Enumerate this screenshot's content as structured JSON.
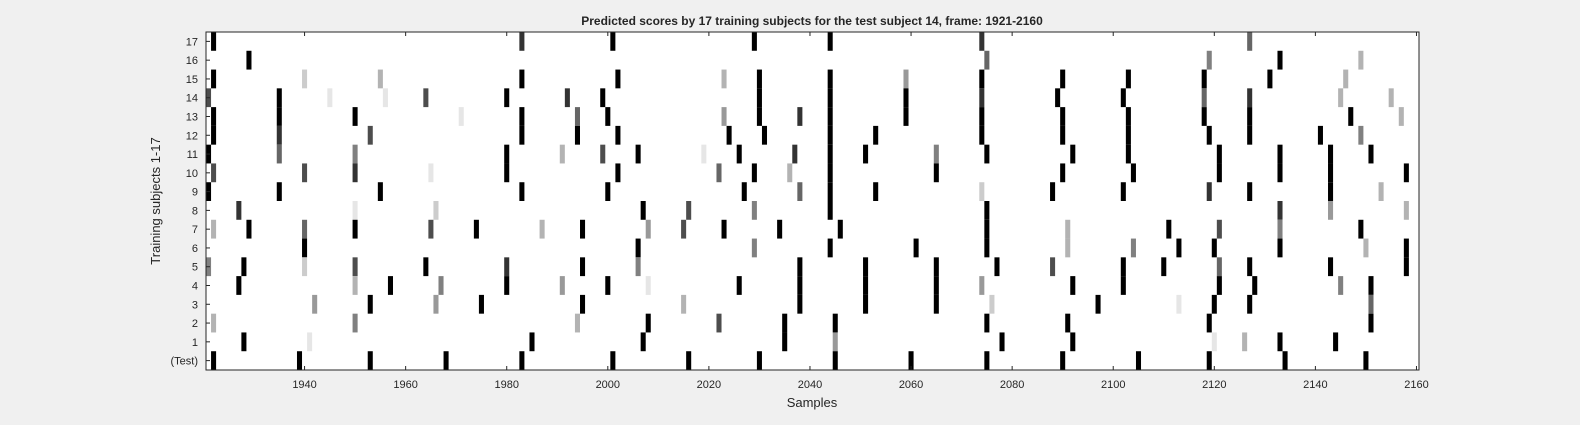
{
  "chart_data": {
    "type": "heatmap",
    "title": "Predicted scores by 17 training subjects for the test subject 14, frame: 1921-2160",
    "xlabel": "Samples",
    "ylabel": "Training subjects 1-17",
    "xlim": [
      1921,
      2160
    ],
    "x_ticks": [
      1940,
      1960,
      1980,
      2000,
      2020,
      2040,
      2060,
      2080,
      2100,
      2120,
      2140,
      2160
    ],
    "y_tick_labels": [
      "17",
      "16",
      "15",
      "14",
      "13",
      "12",
      "11",
      "10",
      "9",
      "8",
      "7",
      "6",
      "5",
      "4",
      "3",
      "2",
      "1",
      "(Test)"
    ],
    "colormap": "gray (1 = black, 0 = white)",
    "rows": [
      {
        "label": "17",
        "cells": [
          [
            1922,
            1
          ],
          [
            1983,
            0.8
          ],
          [
            2001,
            1
          ],
          [
            2029,
            1
          ],
          [
            2044,
            1
          ],
          [
            2074,
            0.8
          ],
          [
            2127,
            0.6
          ]
        ]
      },
      {
        "label": "16",
        "cells": [
          [
            1929,
            1
          ],
          [
            2075,
            0.6
          ],
          [
            2119,
            0.5
          ],
          [
            2133,
            1
          ],
          [
            2149,
            0.3
          ]
        ]
      },
      {
        "label": "15",
        "cells": [
          [
            1922,
            1
          ],
          [
            1940,
            0.2
          ],
          [
            1955,
            0.3
          ],
          [
            1983,
            1
          ],
          [
            2002,
            1
          ],
          [
            2023,
            0.3
          ],
          [
            2030,
            1
          ],
          [
            2044,
            1
          ],
          [
            2059,
            0.4
          ],
          [
            2074,
            1
          ],
          [
            2090,
            1
          ],
          [
            2103,
            1
          ],
          [
            2118,
            1
          ],
          [
            2131,
            1
          ],
          [
            2146,
            0.3
          ]
        ]
      },
      {
        "label": "14",
        "cells": [
          [
            1921,
            0.7
          ],
          [
            1935,
            1
          ],
          [
            1945,
            0.1
          ],
          [
            1956,
            0.1
          ],
          [
            1964,
            0.7
          ],
          [
            1980,
            1
          ],
          [
            1992,
            0.8
          ],
          [
            1999,
            1
          ],
          [
            2030,
            1
          ],
          [
            2044,
            1
          ],
          [
            2059,
            1
          ],
          [
            2074,
            0.8
          ],
          [
            2089,
            1
          ],
          [
            2102,
            1
          ],
          [
            2118,
            0.6
          ],
          [
            2127,
            0.8
          ],
          [
            2145,
            0.3
          ],
          [
            2155,
            0.3
          ]
        ]
      },
      {
        "label": "13",
        "cells": [
          [
            1922,
            1
          ],
          [
            1935,
            1
          ],
          [
            1950,
            1
          ],
          [
            1971,
            0.1
          ],
          [
            1983,
            1
          ],
          [
            1994,
            0.6
          ],
          [
            2000,
            1
          ],
          [
            2023,
            0.4
          ],
          [
            2030,
            1
          ],
          [
            2038,
            0.8
          ],
          [
            2044,
            1
          ],
          [
            2059,
            1
          ],
          [
            2074,
            1
          ],
          [
            2090,
            1
          ],
          [
            2103,
            1
          ],
          [
            2118,
            1
          ],
          [
            2127,
            1
          ],
          [
            2147,
            1
          ],
          [
            2157,
            0.3
          ]
        ]
      },
      {
        "label": "12",
        "cells": [
          [
            1922,
            1
          ],
          [
            1935,
            0.8
          ],
          [
            1953,
            0.7
          ],
          [
            1983,
            1
          ],
          [
            1994,
            1
          ],
          [
            2002,
            1
          ],
          [
            2024,
            1
          ],
          [
            2031,
            1
          ],
          [
            2044,
            1
          ],
          [
            2053,
            1
          ],
          [
            2074,
            1
          ],
          [
            2090,
            1
          ],
          [
            2103,
            1
          ],
          [
            2119,
            1
          ],
          [
            2127,
            1
          ],
          [
            2141,
            1
          ],
          [
            2149,
            0.5
          ]
        ]
      },
      {
        "label": "11",
        "cells": [
          [
            1921,
            1
          ],
          [
            1935,
            0.6
          ],
          [
            1950,
            0.5
          ],
          [
            1980,
            1
          ],
          [
            1991,
            0.3
          ],
          [
            1999,
            0.7
          ],
          [
            2006,
            1
          ],
          [
            2019,
            0.1
          ],
          [
            2026,
            1
          ],
          [
            2037,
            0.8
          ],
          [
            2044,
            1
          ],
          [
            2051,
            1
          ],
          [
            2065,
            0.5
          ],
          [
            2075,
            1
          ],
          [
            2092,
            1
          ],
          [
            2103,
            1
          ],
          [
            2121,
            1
          ],
          [
            2133,
            1
          ],
          [
            2143,
            1
          ],
          [
            2151,
            1
          ]
        ]
      },
      {
        "label": "10",
        "cells": [
          [
            1922,
            0.7
          ],
          [
            1940,
            0.7
          ],
          [
            1950,
            0.8
          ],
          [
            1965,
            0.1
          ],
          [
            1980,
            1
          ],
          [
            2002,
            1
          ],
          [
            2022,
            0.6
          ],
          [
            2029,
            1
          ],
          [
            2036,
            0.3
          ],
          [
            2044,
            1
          ],
          [
            2065,
            1
          ],
          [
            2090,
            1
          ],
          [
            2104,
            1
          ],
          [
            2121,
            1
          ],
          [
            2133,
            1
          ],
          [
            2143,
            1
          ],
          [
            2158,
            1
          ]
        ]
      },
      {
        "label": "9",
        "cells": [
          [
            1921,
            1
          ],
          [
            1935,
            1
          ],
          [
            1955,
            1
          ],
          [
            1983,
            1
          ],
          [
            2000,
            1
          ],
          [
            2027,
            1
          ],
          [
            2038,
            0.6
          ],
          [
            2044,
            1
          ],
          [
            2053,
            1
          ],
          [
            2074,
            0.2
          ],
          [
            2088,
            1
          ],
          [
            2102,
            1
          ],
          [
            2119,
            0.8
          ],
          [
            2127,
            1
          ],
          [
            2143,
            1
          ],
          [
            2153,
            0.3
          ]
        ]
      },
      {
        "label": "8",
        "cells": [
          [
            1927,
            0.8
          ],
          [
            1950,
            0.1
          ],
          [
            1966,
            0.2
          ],
          [
            2007,
            1
          ],
          [
            2016,
            0.7
          ],
          [
            2029,
            0.5
          ],
          [
            2044,
            1
          ],
          [
            2075,
            1
          ],
          [
            2133,
            0.8
          ],
          [
            2143,
            0.4
          ],
          [
            2158,
            0.3
          ]
        ]
      },
      {
        "label": "7",
        "cells": [
          [
            1922,
            0.3
          ],
          [
            1929,
            1
          ],
          [
            1940,
            0.6
          ],
          [
            1950,
            1
          ],
          [
            1965,
            0.7
          ],
          [
            1974,
            1
          ],
          [
            1987,
            0.3
          ],
          [
            1995,
            1
          ],
          [
            2008,
            0.4
          ],
          [
            2015,
            0.7
          ],
          [
            2023,
            1
          ],
          [
            2034,
            1
          ],
          [
            2046,
            1
          ],
          [
            2075,
            1
          ],
          [
            2091,
            0.3
          ],
          [
            2111,
            1
          ],
          [
            2121,
            0.7
          ],
          [
            2133,
            0.5
          ],
          [
            2149,
            1
          ]
        ]
      },
      {
        "label": "6",
        "cells": [
          [
            1940,
            1
          ],
          [
            2006,
            1
          ],
          [
            2029,
            0.5
          ],
          [
            2044,
            1
          ],
          [
            2061,
            1
          ],
          [
            2075,
            1
          ],
          [
            2091,
            0.3
          ],
          [
            2104,
            0.5
          ],
          [
            2113,
            1
          ],
          [
            2120,
            1
          ],
          [
            2133,
            1
          ],
          [
            2150,
            0.3
          ],
          [
            2158,
            1
          ]
        ]
      },
      {
        "label": "5",
        "cells": [
          [
            1921,
            0.5
          ],
          [
            1928,
            1
          ],
          [
            1940,
            0.2
          ],
          [
            1950,
            0.7
          ],
          [
            1964,
            1
          ],
          [
            1980,
            0.8
          ],
          [
            1995,
            1
          ],
          [
            2006,
            0.5
          ],
          [
            2038,
            1
          ],
          [
            2051,
            1
          ],
          [
            2065,
            1
          ],
          [
            2077,
            1
          ],
          [
            2088,
            0.7
          ],
          [
            2102,
            1
          ],
          [
            2110,
            1
          ],
          [
            2121,
            0.6
          ],
          [
            2127,
            1
          ],
          [
            2143,
            1
          ],
          [
            2158,
            1
          ]
        ]
      },
      {
        "label": "4",
        "cells": [
          [
            1927,
            1
          ],
          [
            1950,
            0.3
          ],
          [
            1957,
            1
          ],
          [
            1967,
            0.5
          ],
          [
            1980,
            1
          ],
          [
            1991,
            0.4
          ],
          [
            2000,
            1
          ],
          [
            2008,
            0.1
          ],
          [
            2026,
            1
          ],
          [
            2038,
            1
          ],
          [
            2051,
            1
          ],
          [
            2065,
            1
          ],
          [
            2074,
            0.4
          ],
          [
            2092,
            1
          ],
          [
            2102,
            1
          ],
          [
            2121,
            1
          ],
          [
            2128,
            1
          ],
          [
            2145,
            0.5
          ],
          [
            2151,
            1
          ]
        ]
      },
      {
        "label": "3",
        "cells": [
          [
            1942,
            0.4
          ],
          [
            1953,
            1
          ],
          [
            1966,
            0.4
          ],
          [
            1975,
            1
          ],
          [
            1995,
            1
          ],
          [
            2015,
            0.3
          ],
          [
            2038,
            1
          ],
          [
            2051,
            1
          ],
          [
            2065,
            1
          ],
          [
            2076,
            0.2
          ],
          [
            2097,
            1
          ],
          [
            2113,
            0.1
          ],
          [
            2120,
            1
          ],
          [
            2127,
            1
          ],
          [
            2151,
            0.6
          ]
        ]
      },
      {
        "label": "2",
        "cells": [
          [
            1922,
            0.3
          ],
          [
            1950,
            0.5
          ],
          [
            1994,
            0.3
          ],
          [
            2008,
            1
          ],
          [
            2022,
            0.7
          ],
          [
            2035,
            1
          ],
          [
            2045,
            1
          ],
          [
            2075,
            1
          ],
          [
            2091,
            1
          ],
          [
            2119,
            1
          ],
          [
            2151,
            1
          ]
        ]
      },
      {
        "label": "1",
        "cells": [
          [
            1928,
            1
          ],
          [
            1941,
            0.1
          ],
          [
            1985,
            1
          ],
          [
            2007,
            1
          ],
          [
            2035,
            1
          ],
          [
            2045,
            0.4
          ],
          [
            2078,
            1
          ],
          [
            2092,
            1
          ],
          [
            2120,
            0.1
          ],
          [
            2126,
            0.3
          ],
          [
            2133,
            1
          ],
          [
            2144,
            1
          ]
        ]
      },
      {
        "label": "(Test)",
        "cells": [
          [
            1922,
            1
          ],
          [
            1939,
            1
          ],
          [
            1953,
            1
          ],
          [
            1968,
            1
          ],
          [
            1983,
            1
          ],
          [
            2001,
            1
          ],
          [
            2016,
            1
          ],
          [
            2030,
            1
          ],
          [
            2045,
            1
          ],
          [
            2060,
            1
          ],
          [
            2075,
            1
          ],
          [
            2090,
            1
          ],
          [
            2105,
            1
          ],
          [
            2119,
            1
          ],
          [
            2134,
            1
          ],
          [
            2150,
            1
          ]
        ]
      }
    ]
  }
}
